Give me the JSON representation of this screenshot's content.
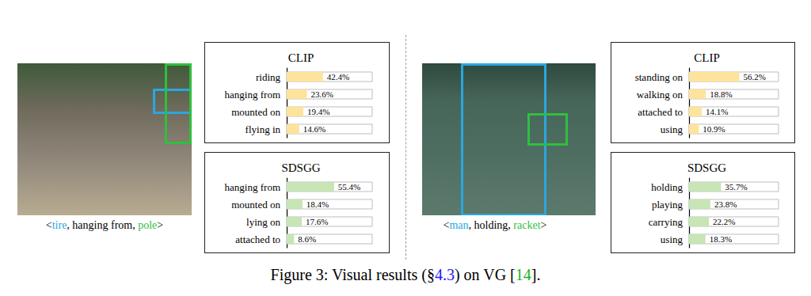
{
  "chart_data": [
    {
      "type": "bar",
      "title": "CLIP",
      "orientation": "horizontal",
      "categories": [
        "riding",
        "hanging from",
        "mounted on",
        "flying in"
      ],
      "values": [
        42.4,
        23.6,
        19.4,
        14.6
      ],
      "value_labels": [
        "42.4%",
        "23.6%",
        "19.4%",
        "14.6%"
      ],
      "color": "#fde39c",
      "xlim": [
        0,
        100
      ],
      "data_labels": true,
      "tick_labels": "y"
    },
    {
      "type": "bar",
      "title": "SDSGG",
      "orientation": "horizontal",
      "categories": [
        "hanging from",
        "mounted on",
        "lying on",
        "attached to"
      ],
      "values": [
        55.4,
        18.4,
        17.6,
        8.6
      ],
      "value_labels": [
        "55.4%",
        "18.4%",
        "17.6%",
        "8.6%"
      ],
      "color": "#c7e5b5",
      "xlim": [
        0,
        100
      ],
      "data_labels": true,
      "tick_labels": "y"
    },
    {
      "type": "bar",
      "title": "CLIP",
      "orientation": "horizontal",
      "categories": [
        "standing on",
        "walking on",
        "attached to",
        "using"
      ],
      "values": [
        56.2,
        18.8,
        14.1,
        10.9
      ],
      "value_labels": [
        "56.2%",
        "18.8%",
        "14.1%",
        "10.9%"
      ],
      "color": "#fde39c",
      "xlim": [
        0,
        100
      ],
      "data_labels": true,
      "tick_labels": "y"
    },
    {
      "type": "bar",
      "title": "SDSGG",
      "orientation": "horizontal",
      "categories": [
        "holding",
        "playing",
        "carrying",
        "using"
      ],
      "values": [
        35.7,
        23.8,
        22.2,
        18.3
      ],
      "value_labels": [
        "35.7%",
        "23.8%",
        "22.2%",
        "18.3%"
      ],
      "color": "#c7e5b5",
      "xlim": [
        0,
        100
      ],
      "data_labels": true,
      "tick_labels": "y"
    }
  ],
  "panels": [
    {
      "caption": [
        {
          "text": "<"
        },
        {
          "text": "tire",
          "color": "#2aa6e2"
        },
        {
          "text": ", hanging from, "
        },
        {
          "text": "pole",
          "color": "#2fbf3f"
        },
        {
          "text": ">"
        }
      ]
    },
    {
      "caption": [
        {
          "text": "<"
        },
        {
          "text": "man",
          "color": "#2aa6e2"
        },
        {
          "text": ", holding, "
        },
        {
          "text": "racket",
          "color": "#2fbf3f"
        },
        {
          "text": ">"
        }
      ]
    }
  ],
  "caption": [
    {
      "text": "Figure 3: Visual results (§"
    },
    {
      "text": "4.3",
      "color": "#1a1aff"
    },
    {
      "text": ") on VG ["
    },
    {
      "text": "14",
      "color": "#19b319"
    },
    {
      "text": "]."
    }
  ]
}
